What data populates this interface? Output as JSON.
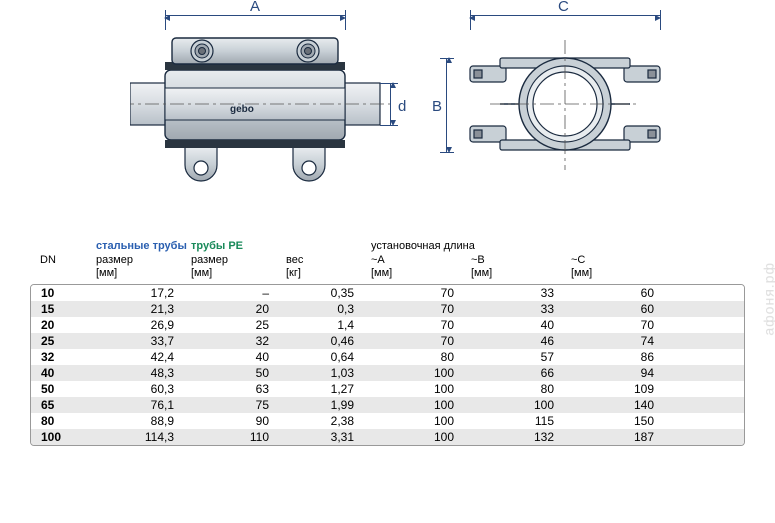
{
  "diagrams": {
    "labels": {
      "A": "A",
      "B": "B",
      "C": "C",
      "d": "d"
    },
    "colors": {
      "line": "#2a4a7f",
      "fill_mid": "#d0d5da",
      "fill_light": "#e8ecef",
      "fill_dark": "#a8b0b8",
      "stroke": "#1a2a3f",
      "centerline": "#555"
    }
  },
  "table": {
    "header_labels": {
      "dn": "DN",
      "steel": "стальные трубы",
      "pe": "трубы PE",
      "install": "установочная длина",
      "size_mm": "размер\n[мм]",
      "weight_kg": "вес\n[кг]",
      "a_mm": "~A\n[мм]",
      "b_mm": "~B\n[мм]",
      "c_mm": "~C\n[мм]"
    },
    "rows": [
      {
        "dn": "10",
        "steel": "17,2",
        "pe": "–",
        "wt": "0,35",
        "a": "70",
        "b": "33",
        "c": "60"
      },
      {
        "dn": "15",
        "steel": "21,3",
        "pe": "20",
        "wt": "0,3",
        "a": "70",
        "b": "33",
        "c": "60"
      },
      {
        "dn": "20",
        "steel": "26,9",
        "pe": "25",
        "wt": "1,4",
        "a": "70",
        "b": "40",
        "c": "70"
      },
      {
        "dn": "25",
        "steel": "33,7",
        "pe": "32",
        "wt": "0,46",
        "a": "70",
        "b": "46",
        "c": "74"
      },
      {
        "dn": "32",
        "steel": "42,4",
        "pe": "40",
        "wt": "0,64",
        "a": "80",
        "b": "57",
        "c": "86"
      },
      {
        "dn": "40",
        "steel": "48,3",
        "pe": "50",
        "wt": "1,03",
        "a": "100",
        "b": "66",
        "c": "94"
      },
      {
        "dn": "50",
        "steel": "60,3",
        "pe": "63",
        "wt": "1,27",
        "a": "100",
        "b": "80",
        "c": "109"
      },
      {
        "dn": "65",
        "steel": "76,1",
        "pe": "75",
        "wt": "1,99",
        "a": "100",
        "b": "100",
        "c": "140"
      },
      {
        "dn": "80",
        "steel": "88,9",
        "pe": "90",
        "wt": "2,38",
        "a": "100",
        "b": "115",
        "c": "150"
      },
      {
        "dn": "100",
        "steel": "114,3",
        "pe": "110",
        "wt": "3,31",
        "a": "100",
        "b": "132",
        "c": "187"
      }
    ]
  },
  "watermark": "афоня.рф"
}
